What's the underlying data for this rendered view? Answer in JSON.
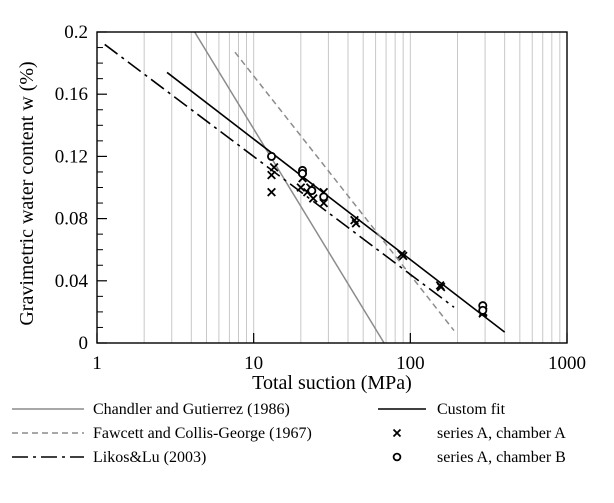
{
  "chart_data": {
    "type": "scatter",
    "title": "",
    "xlabel": "Total suction (MPa)",
    "ylabel": "Gravimetric water content w (%)",
    "x_scale": "log",
    "xlim": [
      1,
      1000
    ],
    "ylim": [
      0,
      0.2
    ],
    "x_ticks": [
      1,
      10,
      100,
      1000
    ],
    "x_tick_labels": [
      "1",
      "10",
      "100",
      "1000"
    ],
    "y_ticks": [
      0,
      0.04,
      0.08,
      0.12,
      0.16,
      0.2
    ],
    "y_tick_labels": [
      "0",
      "0.04",
      "0.08",
      "0.12",
      "0.16",
      "0.2"
    ],
    "grid": {
      "x_minor": true,
      "y": false
    },
    "legend_position": "bottom",
    "series": [
      {
        "name": "Chandler and Gutierrez (1986)",
        "kind": "line",
        "style": "solid",
        "color": "#8c8c8c",
        "points": [
          [
            4.2,
            0.2
          ],
          [
            68,
            0.0
          ]
        ]
      },
      {
        "name": "Custom fit",
        "kind": "line",
        "style": "solid",
        "color": "#000000",
        "points": [
          [
            2.8,
            0.174
          ],
          [
            400,
            0.007
          ]
        ]
      },
      {
        "name": "Fawcett and Collis-George (1967)",
        "kind": "line",
        "style": "dashed",
        "color": "#8c8c8c",
        "points": [
          [
            7.6,
            0.187
          ],
          [
            190,
            0.008
          ]
        ]
      },
      {
        "name": "series A, chamber A",
        "kind": "scatter",
        "marker": "x",
        "color": "#000000",
        "points": [
          [
            13,
            0.097
          ],
          [
            13,
            0.108
          ],
          [
            13.5,
            0.113
          ],
          [
            20,
            0.1
          ],
          [
            20.5,
            0.106
          ],
          [
            22,
            0.097
          ],
          [
            23,
            0.1
          ],
          [
            24,
            0.093
          ],
          [
            28,
            0.097
          ],
          [
            28,
            0.09
          ],
          [
            44,
            0.079
          ],
          [
            45,
            0.077
          ],
          [
            88,
            0.057
          ],
          [
            90,
            0.056
          ],
          [
            155,
            0.037
          ],
          [
            157,
            0.036
          ],
          [
            290,
            0.019
          ],
          [
            292,
            0.02
          ]
        ]
      },
      {
        "name": "Likos&Lu (2003)",
        "kind": "line",
        "style": "longdash",
        "color": "#000000",
        "points": [
          [
            1.12,
            0.192
          ],
          [
            190,
            0.023
          ]
        ]
      },
      {
        "name": "series A, chamber B",
        "kind": "scatter",
        "marker": "o",
        "color": "#000000",
        "points": [
          [
            13,
            0.12
          ],
          [
            20.5,
            0.111
          ],
          [
            20.5,
            0.109
          ],
          [
            23.5,
            0.098
          ],
          [
            28,
            0.094
          ],
          [
            290,
            0.024
          ],
          [
            290,
            0.021
          ]
        ]
      }
    ]
  }
}
